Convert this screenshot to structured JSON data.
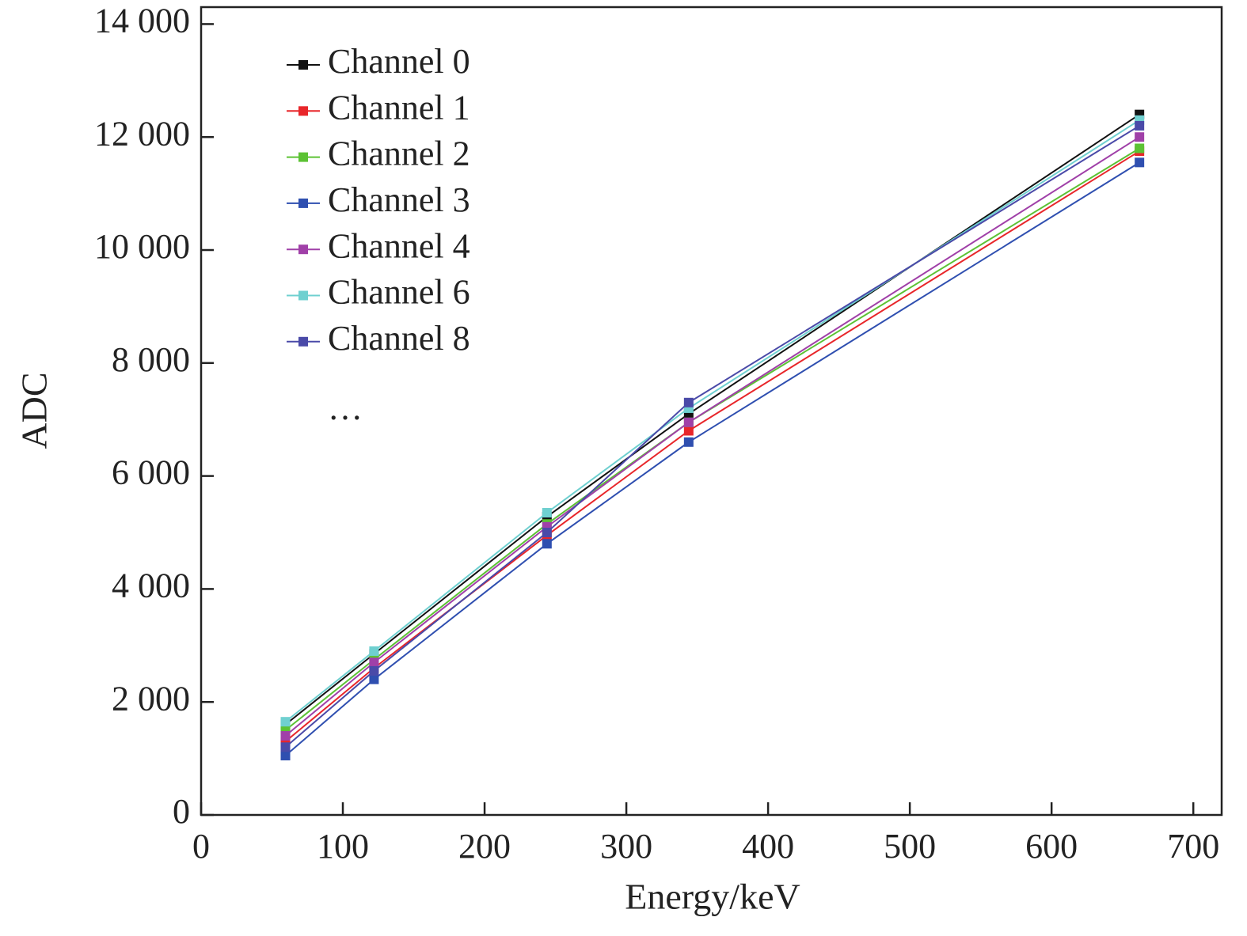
{
  "chart_data": {
    "type": "line",
    "xlabel": "Energy/keV",
    "ylabel": "ADC",
    "xlim": [
      0,
      720
    ],
    "ylim": [
      0,
      14300
    ],
    "xticks": [
      0,
      100,
      200,
      300,
      400,
      500,
      600,
      700
    ],
    "yticks": [
      0,
      {
        "value": 2000,
        "label": "2 000"
      },
      {
        "value": 4000,
        "label": "4 000"
      },
      {
        "value": 6000,
        "label": "6 000"
      },
      {
        "value": 8000,
        "label": "8 000"
      },
      {
        "value": 10000,
        "label": "10 000"
      },
      {
        "value": 12000,
        "label": "12 000"
      },
      {
        "value": 14000,
        "label": "14 000"
      }
    ],
    "x": [
      59.5,
      122,
      244,
      344,
      662
    ],
    "series": [
      {
        "name": "Channel 0",
        "color": "#111111",
        "values": [
          1600,
          2850,
          5280,
          7100,
          12400
        ]
      },
      {
        "name": "Channel 1",
        "color": "#e8262a",
        "values": [
          1300,
          2600,
          4950,
          6800,
          11750
        ]
      },
      {
        "name": "Channel 2",
        "color": "#5cc234",
        "values": [
          1500,
          2750,
          5150,
          6950,
          11800
        ]
      },
      {
        "name": "Channel 3",
        "color": "#2f4fb0",
        "values": [
          1050,
          2400,
          4800,
          6600,
          11550
        ]
      },
      {
        "name": "Channel 4",
        "color": "#a040a8",
        "values": [
          1400,
          2700,
          5100,
          6950,
          12000
        ]
      },
      {
        "name": "Channel 6",
        "color": "#6fd0d0",
        "values": [
          1650,
          2900,
          5350,
          7200,
          12300
        ]
      },
      {
        "name": "Channel 8",
        "color": "#4a4aa8",
        "values": [
          1200,
          2550,
          5000,
          7300,
          12200
        ]
      }
    ],
    "legend_note": "…",
    "legend": "upper left"
  }
}
